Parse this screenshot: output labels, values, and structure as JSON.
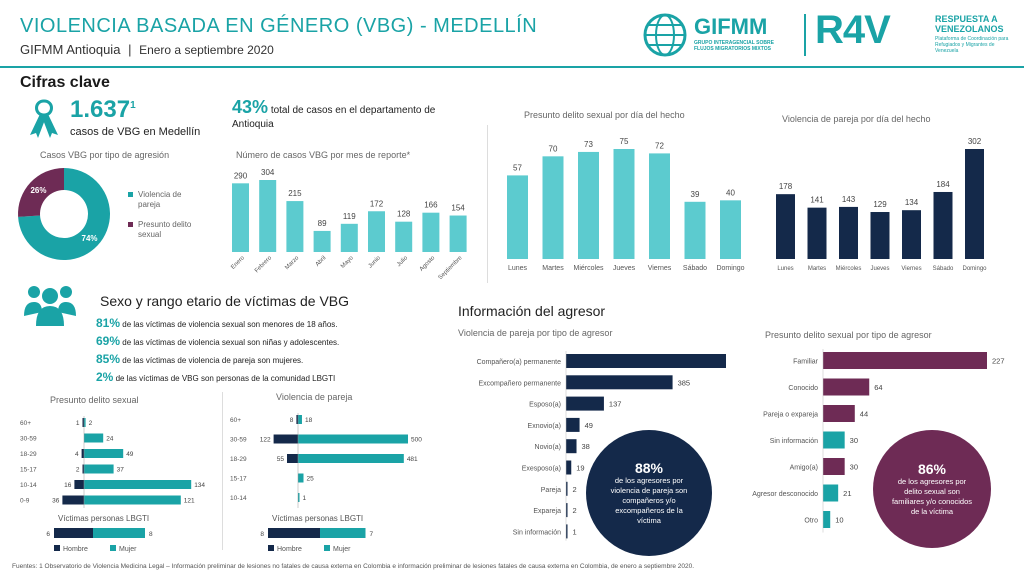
{
  "header": {
    "title": "VIOLENCIA BASADA EN GÉNERO (VBG) - MEDELLÍN",
    "org": "GIFMM Antioquia",
    "period": "Enero a septiembre 2020",
    "gifmm_logo": "GIFMM",
    "gifmm_sub": "GRUPO INTERAGENCIAL SOBRE FLUJOS MIGRATORIOS MIXTOS",
    "r4v_logo": "R4V",
    "r4v_title": "RESPUESTA A VENEZOLANOS",
    "r4v_sub": "Plataforma de Coordinación para Refugiados y Migrantes de Venezuela"
  },
  "cifras": {
    "title": "Cifras clave",
    "total": "1.637",
    "total_sup": "1",
    "total_label": "casos de VBG en Medellín",
    "pct": "43%",
    "pct_label": "total de casos en el departamento de Antioquia"
  },
  "colors": {
    "teal": "#1aa3a6",
    "teal_light": "#5ccbcf",
    "navy": "#14294a",
    "plum": "#6e2b55"
  },
  "sexo": {
    "title": "Sexo y rango etario de víctimas de VBG",
    "stats": [
      {
        "pct": "81%",
        "text": "de las víctimas de violencia sexual son menores de 18 años."
      },
      {
        "pct": "69%",
        "text": "de las víctimas de violencia sexual son niñas y adolescentes."
      },
      {
        "pct": "85%",
        "text": "de las víctimas de violencia de pareja son mujeres."
      },
      {
        "pct": "2%",
        "text": "de las víctimas de VBG son personas de la comunidad LBGTI"
      }
    ]
  },
  "agresor": {
    "title": "Información del agresor",
    "bubble1_pct": "88%",
    "bubble1_text": "de los agresores por violencia de pareja son compañeros y/o excompañeros de la víctima",
    "bubble2_pct": "86%",
    "bubble2_text": "de los agresores por delito sexual son familiares y/o conocidos de la víctima"
  },
  "legend": {
    "hombre": "Hombre",
    "mujer": "Mujer"
  },
  "footer": "Fuentes: 1 Observatorio de Violencia Medicina Legal – Información preliminar de lesiones no fatales de causa externa en Colombia e información preliminar de lesiones fatales de causa externa en Colombia, de enero a septiembre 2020.",
  "chart_data": [
    {
      "id": "tipo_agresion",
      "type": "pie",
      "title": "Casos VBG por tipo de agresión",
      "categories": [
        "Violencia de pareja",
        "Presunto delito sexual"
      ],
      "values": [
        74,
        26
      ],
      "labels": [
        "74%",
        "26%"
      ],
      "colors": [
        "#1aa3a6",
        "#6e2b55"
      ]
    },
    {
      "id": "mes",
      "type": "bar",
      "title": "Número de casos VBG por mes de reporte*",
      "categories": [
        "Enero",
        "Febrero",
        "Marzo",
        "Abril",
        "Mayo",
        "Junio",
        "Julio",
        "Agosto",
        "Septiembre"
      ],
      "values": [
        290,
        304,
        215,
        89,
        119,
        172,
        128,
        166,
        154
      ]
    },
    {
      "id": "sexual_dia",
      "type": "bar",
      "title": "Presunto delito sexual por día del hecho",
      "categories": [
        "Lunes",
        "Martes",
        "Miércoles",
        "Jueves",
        "Viernes",
        "Sábado",
        "Domingo"
      ],
      "values": [
        57,
        70,
        73,
        75,
        72,
        39,
        40
      ]
    },
    {
      "id": "pareja_dia",
      "type": "bar",
      "title": "Violencia de pareja por día del hecho",
      "categories": [
        "Lunes",
        "Martes",
        "Miércoles",
        "Jueves",
        "Viernes",
        "Sábado",
        "Domingo"
      ],
      "values": [
        178,
        141,
        143,
        129,
        134,
        184,
        302
      ]
    },
    {
      "id": "sexual_edad",
      "type": "bar",
      "title": "Presunto delito sexual",
      "categories": [
        "60+",
        "30-59",
        "18-29",
        "15-17",
        "10-14",
        "0-9"
      ],
      "series": [
        {
          "name": "Hombre",
          "values": [
            1,
            null,
            4,
            2,
            16,
            36
          ]
        },
        {
          "name": "Mujer",
          "values": [
            2,
            24,
            49,
            37,
            134,
            121
          ]
        }
      ]
    },
    {
      "id": "pareja_edad",
      "type": "bar",
      "title": "Violencia de pareja",
      "categories": [
        "60+",
        "30-59",
        "18-29",
        "15-17",
        "10-14"
      ],
      "series": [
        {
          "name": "Hombre",
          "values": [
            8,
            122,
            55,
            null,
            null
          ]
        },
        {
          "name": "Mujer",
          "values": [
            18,
            500,
            481,
            25,
            1
          ]
        }
      ]
    },
    {
      "id": "sexual_lgbti",
      "type": "bar",
      "title": "Víctimas personas LBGTI",
      "series": [
        {
          "name": "Hombre",
          "values": [
            6
          ]
        },
        {
          "name": "Mujer",
          "values": [
            8
          ]
        }
      ]
    },
    {
      "id": "pareja_lgbti",
      "type": "bar",
      "title": "Víctimas personas LBGTI",
      "series": [
        {
          "name": "Hombre",
          "values": [
            8
          ]
        },
        {
          "name": "Mujer",
          "values": [
            7
          ]
        }
      ]
    },
    {
      "id": "pareja_agresor",
      "type": "bar",
      "title": "Violencia de pareja por tipo de agresor",
      "categories": [
        "Compañero(a) permanente",
        "Excompañero permanente",
        "Esposo(a)",
        "Exnovio(a)",
        "Novio(a)",
        "Exesposo(a)",
        "Pareja",
        "Expareja",
        "Sin información"
      ],
      "values": [
        578,
        385,
        137,
        49,
        38,
        19,
        2,
        2,
        1
      ]
    },
    {
      "id": "sexual_agresor",
      "type": "bar",
      "title": "Presunto delito sexual por tipo de agresor",
      "categories": [
        "Familiar",
        "Conocido",
        "Pareja o expareja",
        "Sin información",
        "Amigo(a)",
        "Agresor desconocido",
        "Otro"
      ],
      "values": [
        227,
        64,
        44,
        30,
        30,
        21,
        10
      ],
      "colors": [
        "#6e2b55",
        "#6e2b55",
        "#6e2b55",
        "#1aa3a6",
        "#6e2b55",
        "#1aa3a6",
        "#1aa3a6"
      ]
    }
  ]
}
